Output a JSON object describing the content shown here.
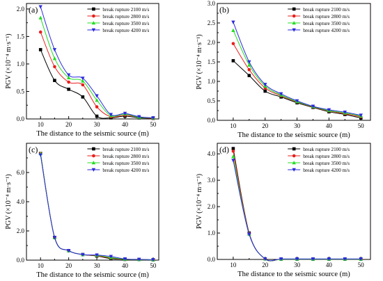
{
  "colors": {
    "s2100": "#000000",
    "s2800": "#e8201c",
    "s3500": "#22dd22",
    "s4200": "#2b2bdc",
    "axis": "#000000"
  },
  "legend_entries": [
    "break rupture 2100 m/s",
    "break rupture 2800 m/s",
    "break rupture 3500 m/s",
    "break rupture 4200 m/s"
  ],
  "chart_data": [
    {
      "type": "line",
      "panel_label": "(a)",
      "xlabel": "The distance to the seismic source (m)",
      "ylabel": "PGV (×10⁻⁴ m·s⁻¹)",
      "xlim": [
        5,
        52
      ],
      "ylim": [
        0,
        2.1
      ],
      "xticks": [
        10,
        20,
        30,
        40,
        50
      ],
      "yticks": [
        0.0,
        0.5,
        1.0,
        1.5,
        2.0
      ],
      "legend": "top-right",
      "x": [
        10,
        15,
        20,
        25,
        30,
        35,
        40,
        45,
        50
      ],
      "series": [
        {
          "name": "break rupture 2100 m/s",
          "values": [
            1.26,
            0.7,
            0.54,
            0.4,
            0.05,
            0.02,
            0.05,
            0.02,
            0.01
          ]
        },
        {
          "name": "break rupture 2800 m/s",
          "values": [
            1.58,
            0.95,
            0.67,
            0.62,
            0.22,
            0.04,
            0.07,
            0.03,
            0.01
          ]
        },
        {
          "name": "break rupture 3500 m/s",
          "values": [
            1.84,
            1.1,
            0.75,
            0.69,
            0.34,
            0.06,
            0.09,
            0.03,
            0.02
          ]
        },
        {
          "name": "break rupture 4200 m/s",
          "values": [
            2.04,
            1.26,
            0.8,
            0.74,
            0.42,
            0.08,
            0.1,
            0.04,
            0.02
          ]
        }
      ]
    },
    {
      "type": "line",
      "panel_label": "(b)",
      "xlabel": "The distance to the seismic source (m)",
      "ylabel": "PGV (×10⁻⁴ m·s⁻¹)",
      "xlim": [
        5,
        53
      ],
      "ylim": [
        0,
        3.0
      ],
      "xticks": [
        10,
        20,
        30,
        40,
        50
      ],
      "yticks": [
        0.0,
        0.5,
        1.0,
        1.5,
        2.0,
        2.5,
        3.0
      ],
      "legend": "top-right",
      "x": [
        10,
        15,
        20,
        25,
        30,
        35,
        40,
        45,
        50
      ],
      "series": [
        {
          "name": "break rupture 2100 m/s",
          "values": [
            1.53,
            1.15,
            0.75,
            0.6,
            0.45,
            0.33,
            0.22,
            0.15,
            0.06
          ]
        },
        {
          "name": "break rupture 2800 m/s",
          "values": [
            1.97,
            1.3,
            0.83,
            0.63,
            0.47,
            0.34,
            0.24,
            0.17,
            0.09
          ]
        },
        {
          "name": "break rupture 3500 m/s",
          "values": [
            2.31,
            1.42,
            0.88,
            0.65,
            0.48,
            0.35,
            0.25,
            0.19,
            0.11
          ]
        },
        {
          "name": "break rupture 4200 m/s",
          "values": [
            2.52,
            1.5,
            0.92,
            0.68,
            0.5,
            0.36,
            0.27,
            0.21,
            0.13
          ]
        }
      ]
    },
    {
      "type": "line",
      "panel_label": "(c)",
      "xlabel": "The distance to the seismic source (m)",
      "ylabel": "PGV (×10⁻⁴ m·s⁻¹)",
      "xlim": [
        5,
        52
      ],
      "ylim": [
        0,
        8.0
      ],
      "xticks": [
        10,
        20,
        30,
        40,
        50
      ],
      "yticks": [
        0.0,
        2.0,
        4.0,
        6.0
      ],
      "legend": "top-right",
      "x": [
        10,
        15,
        20,
        25,
        30,
        35,
        40,
        45,
        50
      ],
      "series": [
        {
          "name": "break rupture 2100 m/s",
          "values": [
            7.3,
            1.55,
            0.65,
            0.38,
            0.28,
            0.1,
            0.05,
            0.04,
            0.02
          ]
        },
        {
          "name": "break rupture 2800 m/s",
          "values": [
            7.3,
            1.55,
            0.65,
            0.38,
            0.3,
            0.15,
            0.05,
            0.04,
            0.02
          ]
        },
        {
          "name": "break rupture 3500 m/s",
          "values": [
            7.3,
            1.55,
            0.65,
            0.38,
            0.33,
            0.18,
            0.06,
            0.04,
            0.02
          ]
        },
        {
          "name": "break rupture 4200 m/s",
          "values": [
            7.2,
            1.55,
            0.65,
            0.38,
            0.35,
            0.25,
            0.08,
            0.05,
            0.03
          ]
        }
      ]
    },
    {
      "type": "line",
      "panel_label": "(d)",
      "xlabel": "The distance to the seismic source (m)",
      "ylabel": "PGV (×10⁻⁴ m·s⁻¹)",
      "xlim": [
        5,
        53
      ],
      "ylim": [
        0,
        4.4
      ],
      "xticks": [
        10,
        20,
        30,
        40,
        50
      ],
      "yticks": [
        0.0,
        1.0,
        2.0,
        3.0,
        4.0
      ],
      "legend": "top-right",
      "x": [
        10,
        15,
        20,
        25,
        30,
        35,
        40,
        45,
        50
      ],
      "series": [
        {
          "name": "break rupture 2100 m/s",
          "values": [
            4.2,
            1.0,
            0.02,
            0.01,
            0.01,
            0.01,
            0.01,
            0.01,
            0.01
          ]
        },
        {
          "name": "break rupture 2800 m/s",
          "values": [
            4.1,
            0.98,
            0.02,
            0.01,
            0.01,
            0.01,
            0.01,
            0.01,
            0.01
          ]
        },
        {
          "name": "break rupture 3500 m/s",
          "values": [
            3.9,
            0.96,
            0.02,
            0.01,
            0.01,
            0.01,
            0.01,
            0.01,
            0.01
          ]
        },
        {
          "name": "break rupture 4200 m/s",
          "values": [
            3.75,
            0.95,
            0.02,
            0.02,
            0.02,
            0.02,
            0.02,
            0.02,
            0.02
          ]
        }
      ]
    }
  ]
}
